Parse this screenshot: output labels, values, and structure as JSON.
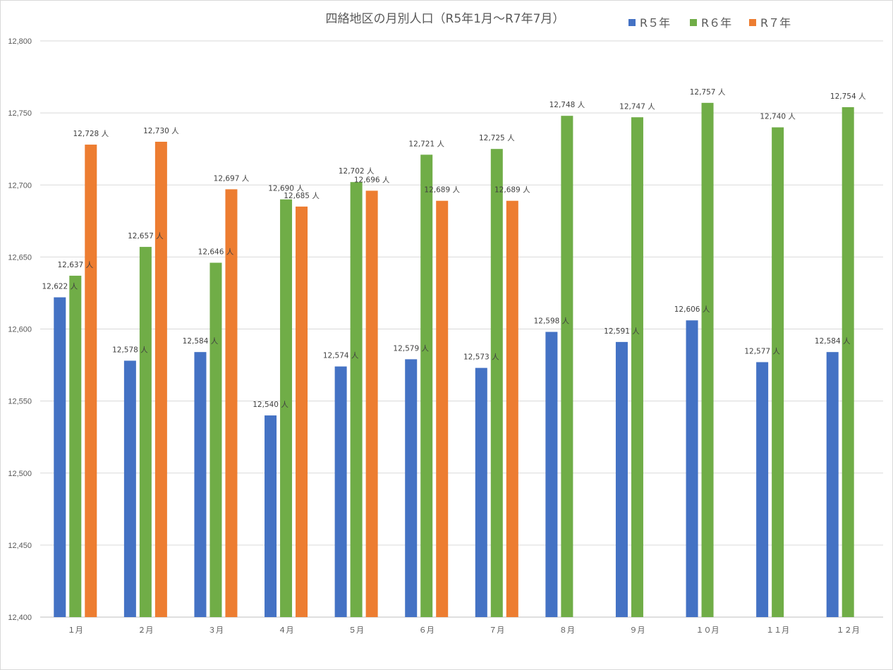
{
  "chart_data": {
    "type": "bar",
    "title": "四絡地区の月別人口（R5年1月～R7年7月）",
    "categories": [
      "１月",
      "２月",
      "３月",
      "４月",
      "５月",
      "６月",
      "７月",
      "８月",
      "９月",
      "１０月",
      "１１月",
      "１２月"
    ],
    "series": [
      {
        "name": "R５年",
        "color": "#4472C4",
        "values": [
          12622,
          12578,
          12584,
          12540,
          12574,
          12579,
          12573,
          12598,
          12591,
          12606,
          12577,
          12584
        ],
        "labels": [
          "12,622 人",
          "12,578 人",
          "12,584 人",
          "12,540 人",
          "12,574 人",
          "12,579 人",
          "12,573 人",
          "12,598 人",
          "12,591 人",
          "12,606 人",
          "12,577 人",
          "12,584 人"
        ]
      },
      {
        "name": "R６年",
        "color": "#70AD47",
        "values": [
          12637,
          12657,
          12646,
          12690,
          12702,
          12721,
          12725,
          12748,
          12747,
          12757,
          12740,
          12754
        ],
        "labels": [
          "12,637 人",
          "12,657 人",
          "12,646 人",
          "12,690 人",
          "12,702 人",
          "12,721 人",
          "12,725 人",
          "12,748 人",
          "12,747 人",
          "12,757 人",
          "12,740 人",
          "12,754 人"
        ]
      },
      {
        "name": "R７年",
        "color": "#ED7D31",
        "values": [
          12728,
          12730,
          12697,
          12685,
          12696,
          12689,
          12689,
          null,
          null,
          null,
          null,
          null
        ],
        "labels": [
          "12,728 人",
          "12,730 人",
          "12,697 人",
          "12,685 人",
          "12,696 人",
          "12,689 人",
          "12,689 人",
          null,
          null,
          null,
          null,
          null
        ]
      }
    ],
    "ylim": [
      12400,
      12800
    ],
    "yticks": [
      12400,
      12450,
      12500,
      12550,
      12600,
      12650,
      12700,
      12750,
      12800
    ],
    "ytick_labels": [
      "12,400",
      "12,450",
      "12,500",
      "12,550",
      "12,600",
      "12,650",
      "12,700",
      "12,750",
      "12,800"
    ],
    "xlabel": "",
    "ylabel": "",
    "grid": true,
    "legend": "top-right"
  }
}
